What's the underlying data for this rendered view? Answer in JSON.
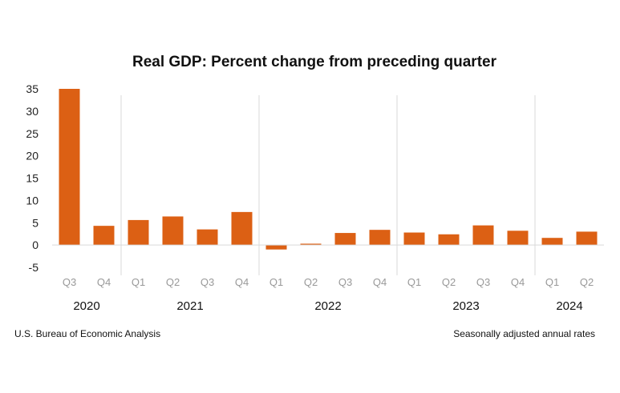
{
  "chart_data": {
    "type": "bar",
    "title": "Real GDP: Percent change from preceding quarter",
    "xlabel": "",
    "ylabel": "",
    "ylim": [
      -5,
      35
    ],
    "yticks": [
      35,
      30,
      25,
      20,
      15,
      10,
      5,
      0,
      -5
    ],
    "categories": [
      "Q3",
      "Q4",
      "Q1",
      "Q2",
      "Q3",
      "Q4",
      "Q1",
      "Q2",
      "Q3",
      "Q4",
      "Q1",
      "Q2",
      "Q3",
      "Q4",
      "Q1",
      "Q2"
    ],
    "values": [
      35.0,
      4.3,
      5.6,
      6.4,
      3.5,
      7.4,
      -1.0,
      0.3,
      2.7,
      3.4,
      2.8,
      2.4,
      4.4,
      3.2,
      1.6,
      3.0
    ],
    "years": [
      {
        "label": "2020",
        "start": 0,
        "end": 1
      },
      {
        "label": "2021",
        "start": 2,
        "end": 5
      },
      {
        "label": "2022",
        "start": 6,
        "end": 9
      },
      {
        "label": "2023",
        "start": 10,
        "end": 13
      },
      {
        "label": "2024",
        "start": 14,
        "end": 15
      }
    ],
    "bar_color": "#dc6014",
    "source": "U.S. Bureau of Economic Analysis",
    "note": "Seasonally adjusted annual rates"
  }
}
